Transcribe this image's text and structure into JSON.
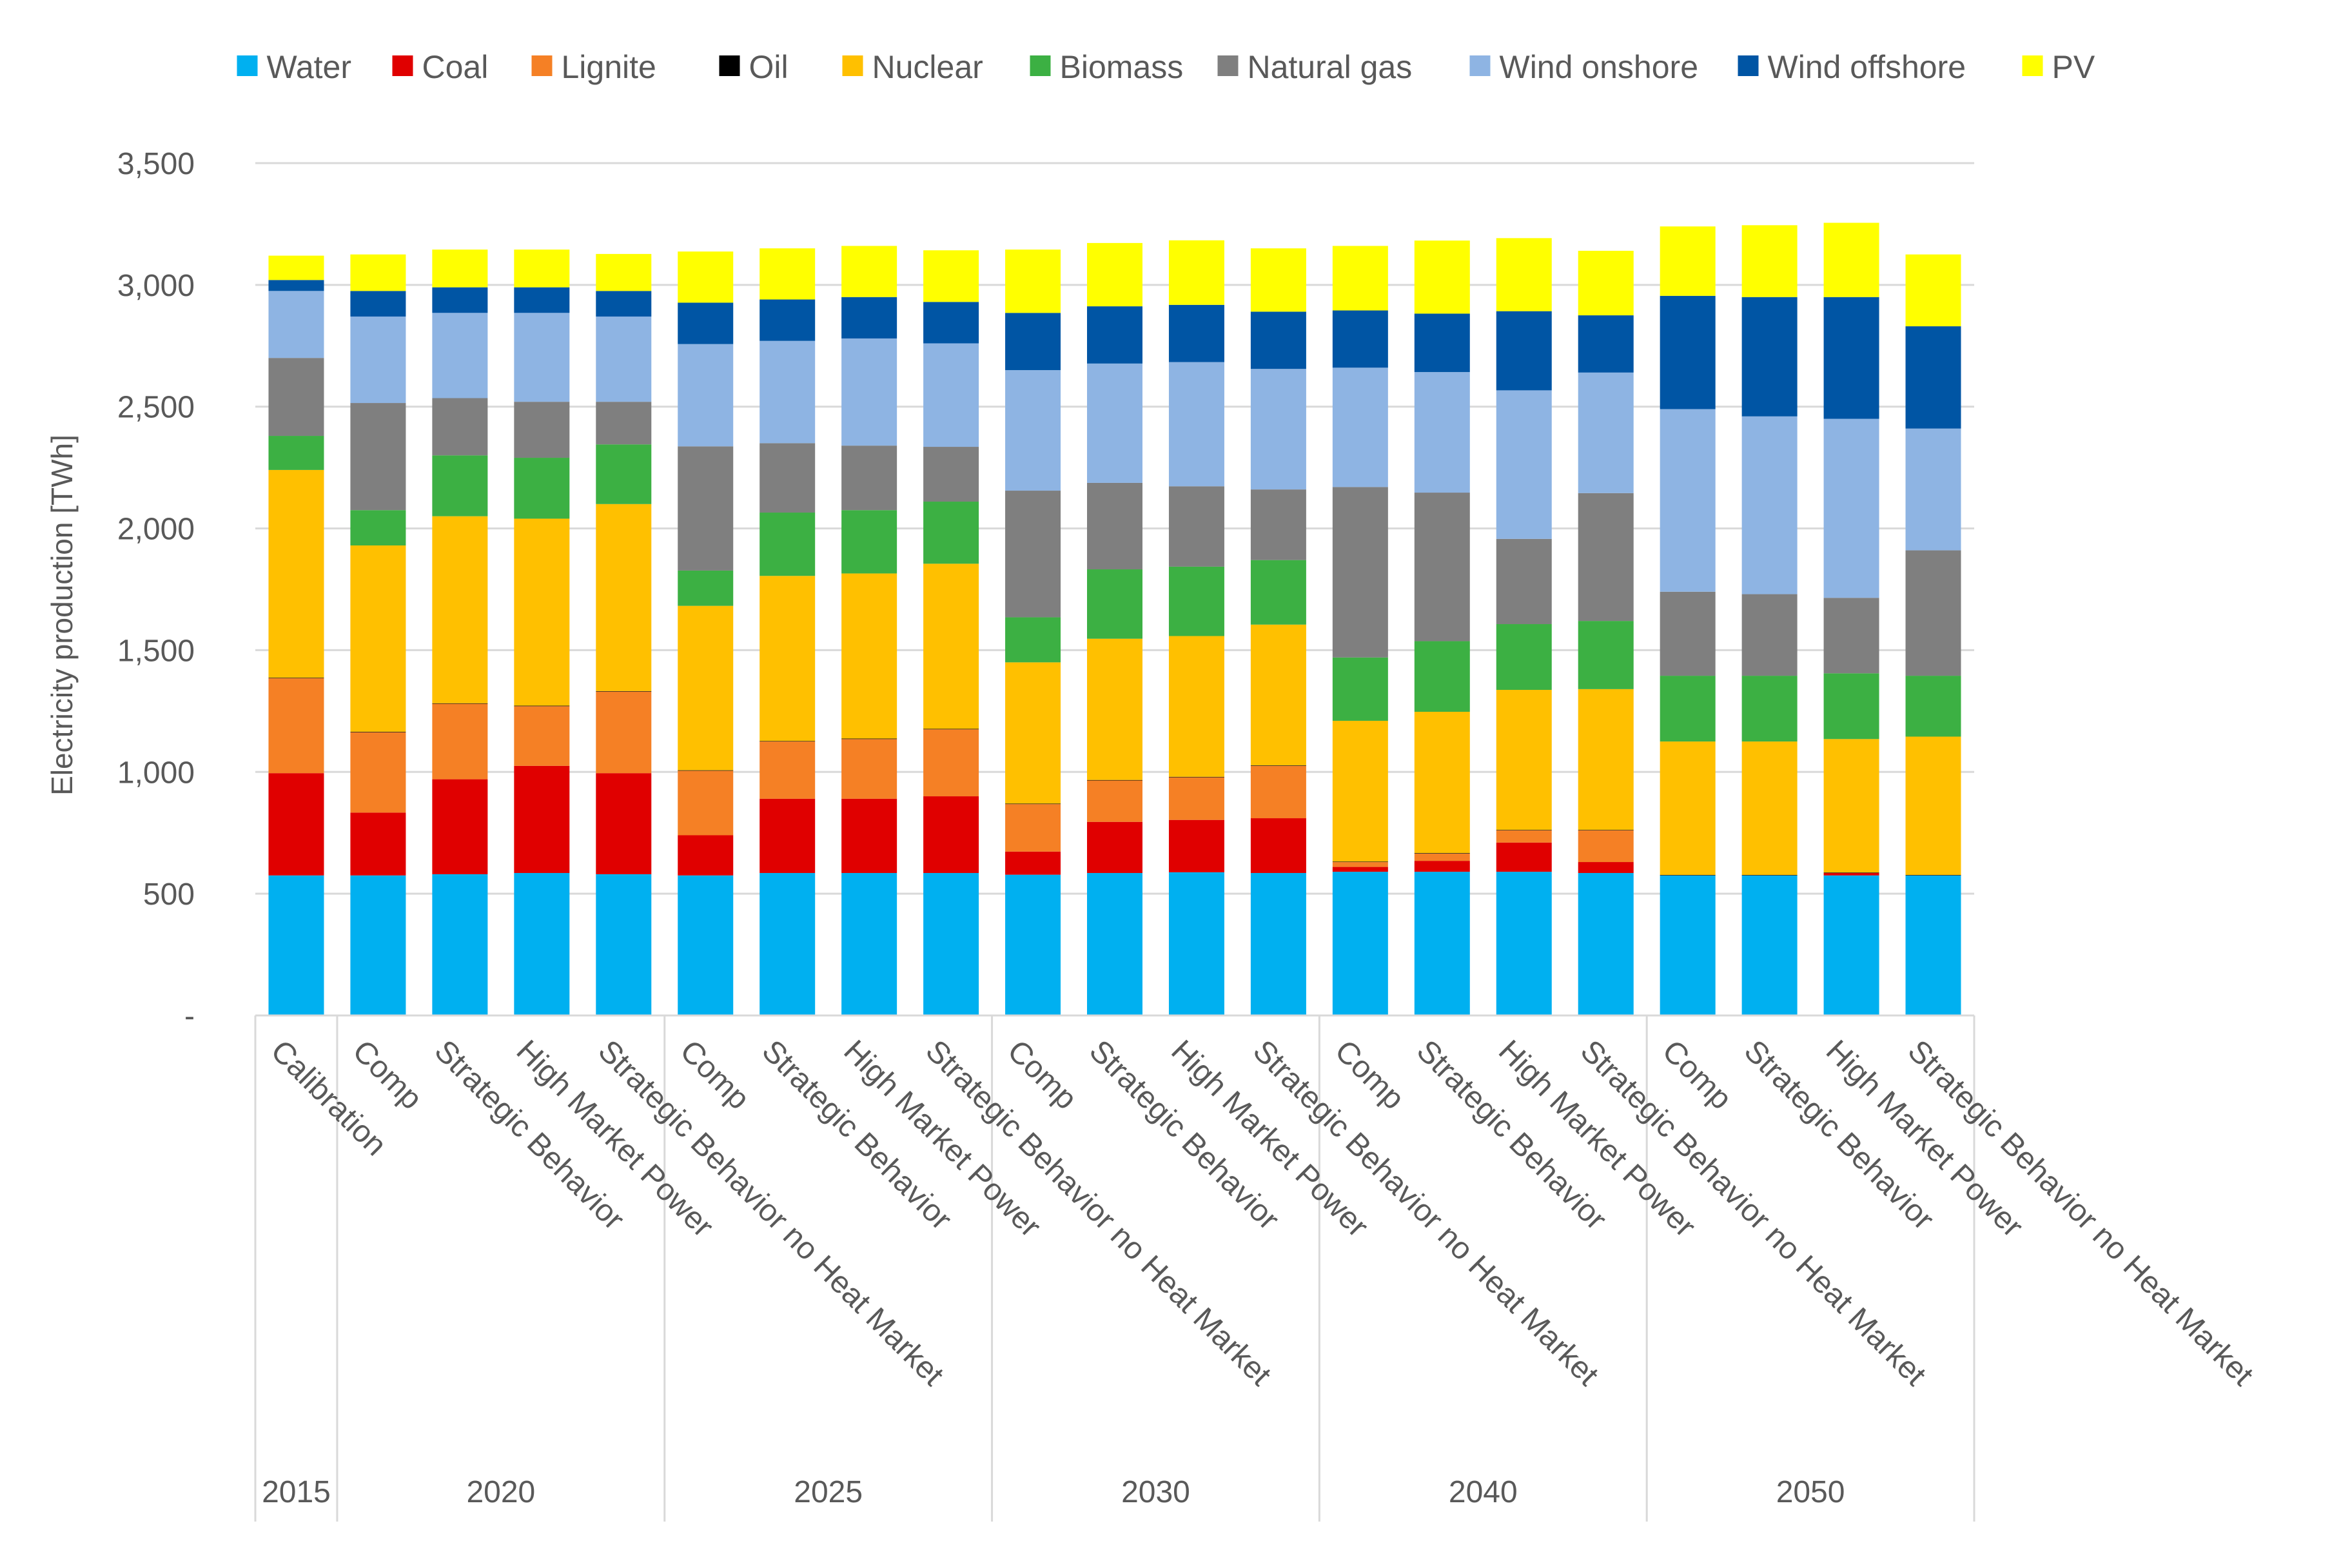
{
  "chart_data": {
    "type": "bar",
    "stacked": true,
    "title": "",
    "xlabel": "",
    "ylabel": "Electricity production [TWh]",
    "ylim": [
      0,
      3500
    ],
    "yticks": [
      0,
      500,
      1000,
      1500,
      2000,
      2500,
      3000,
      3500
    ],
    "ytick_labels": [
      "-",
      "500",
      "1,000",
      "1,500",
      "2,000",
      "2,500",
      "3,000",
      "3,500"
    ],
    "grid": true,
    "legend_position": "top",
    "categories": [
      "Calibration",
      "Comp",
      "Strategic Behavior",
      "High Market Power",
      "Strategic Behavior no Heat Market",
      "Comp",
      "Strategic Behavior",
      "High Market Power",
      "Strategic Behavior no Heat Market",
      "Comp",
      "Strategic Behavior",
      "High Market Power",
      "Strategic Behavior no Heat Market",
      "Comp",
      "Strategic Behavior",
      "High Market Power",
      "Strategic Behavior no Heat Market",
      "Comp",
      "Strategic Behavior",
      "High Market Power",
      "Strategic Behavior no Heat Market"
    ],
    "groups": [
      {
        "label": "2015",
        "count": 1
      },
      {
        "label": "2020",
        "count": 4
      },
      {
        "label": "2025",
        "count": 4
      },
      {
        "label": "2030",
        "count": 4
      },
      {
        "label": "2040",
        "count": 4
      },
      {
        "label": "2050",
        "count": 4
      }
    ],
    "series": [
      {
        "name": "Water",
        "color": "#00B0F0",
        "values": [
          575,
          575,
          580,
          585,
          580,
          575,
          585,
          585,
          585,
          578,
          585,
          588,
          585,
          590,
          590,
          590,
          585,
          575,
          575,
          575,
          575
        ]
      },
      {
        "name": "Coal",
        "color": "#E00000",
        "values": [
          420,
          258,
          390,
          440,
          415,
          165,
          305,
          305,
          315,
          95,
          210,
          215,
          225,
          20,
          45,
          120,
          45,
          0,
          0,
          10,
          0
        ]
      },
      {
        "name": "Lignite",
        "color": "#F58025",
        "values": [
          390,
          330,
          310,
          245,
          335,
          265,
          235,
          245,
          275,
          195,
          170,
          175,
          215,
          20,
          30,
          50,
          130,
          0,
          0,
          0,
          0
        ]
      },
      {
        "name": "Oil",
        "color": "#000000",
        "values": [
          2,
          2,
          2,
          2,
          2,
          2,
          2,
          2,
          2,
          2,
          2,
          2,
          2,
          2,
          2,
          2,
          2,
          2,
          2,
          2,
          2
        ]
      },
      {
        "name": "Nuclear",
        "color": "#FFC000",
        "values": [
          853,
          765,
          768,
          768,
          768,
          675,
          678,
          678,
          678,
          580,
          580,
          578,
          578,
          578,
          580,
          575,
          578,
          548,
          548,
          548,
          568
        ]
      },
      {
        "name": "Biomass",
        "color": "#3CB043",
        "values": [
          140,
          145,
          250,
          250,
          245,
          145,
          260,
          260,
          255,
          185,
          285,
          285,
          265,
          260,
          290,
          270,
          280,
          270,
          270,
          270,
          250
        ]
      },
      {
        "name": "Natural gas",
        "color": "#7F7F7F",
        "values": [
          320,
          440,
          235,
          230,
          175,
          510,
          285,
          265,
          225,
          520,
          355,
          330,
          290,
          700,
          610,
          350,
          525,
          345,
          335,
          310,
          515
        ]
      },
      {
        "name": "Wind onshore",
        "color": "#8EB4E3",
        "values": [
          275,
          355,
          350,
          365,
          350,
          420,
          420,
          440,
          425,
          495,
          490,
          510,
          495,
          490,
          495,
          610,
          495,
          750,
          730,
          735,
          500
        ]
      },
      {
        "name": "Wind offshore",
        "color": "#0055A4",
        "values": [
          45,
          105,
          105,
          105,
          105,
          170,
          170,
          170,
          170,
          235,
          235,
          235,
          235,
          235,
          240,
          325,
          235,
          465,
          490,
          500,
          420
        ]
      },
      {
        "name": "PV",
        "color": "#FFFF00",
        "values": [
          100,
          150,
          155,
          155,
          152,
          210,
          210,
          210,
          212,
          260,
          260,
          265,
          260,
          265,
          300,
          300,
          265,
          285,
          295,
          305,
          295
        ]
      }
    ]
  }
}
